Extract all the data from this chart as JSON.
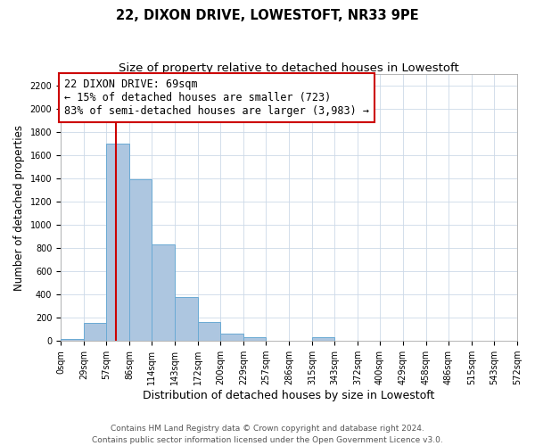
{
  "title": "22, DIXON DRIVE, LOWESTOFT, NR33 9PE",
  "subtitle": "Size of property relative to detached houses in Lowestoft",
  "xlabel": "Distribution of detached houses by size in Lowestoft",
  "ylabel": "Number of detached properties",
  "bar_edges": [
    0,
    29,
    57,
    86,
    114,
    143,
    172,
    200,
    229,
    257,
    286,
    315,
    343,
    372,
    400,
    429,
    458,
    486,
    515,
    543,
    572
  ],
  "bar_values": [
    20,
    155,
    1700,
    1390,
    830,
    380,
    165,
    65,
    30,
    0,
    0,
    30,
    0,
    0,
    0,
    0,
    0,
    0,
    0,
    0
  ],
  "bar_color": "#adc6e0",
  "bar_edge_color": "#6aaad4",
  "property_line_x": 69,
  "property_line_color": "#cc0000",
  "annotation_text": "22 DIXON DRIVE: 69sqm\n← 15% of detached houses are smaller (723)\n83% of semi-detached houses are larger (3,983) →",
  "annotation_box_color": "#ffffff",
  "annotation_box_edge_color": "#cc0000",
  "ylim": [
    0,
    2300
  ],
  "yticks": [
    0,
    200,
    400,
    600,
    800,
    1000,
    1200,
    1400,
    1600,
    1800,
    2000,
    2200
  ],
  "xtick_labels": [
    "0sqm",
    "29sqm",
    "57sqm",
    "86sqm",
    "114sqm",
    "143sqm",
    "172sqm",
    "200sqm",
    "229sqm",
    "257sqm",
    "286sqm",
    "315sqm",
    "343sqm",
    "372sqm",
    "400sqm",
    "429sqm",
    "458sqm",
    "486sqm",
    "515sqm",
    "543sqm",
    "572sqm"
  ],
  "footer_line1": "Contains HM Land Registry data © Crown copyright and database right 2024.",
  "footer_line2": "Contains public sector information licensed under the Open Government Licence v3.0.",
  "background_color": "#ffffff",
  "grid_color": "#ccd9e8",
  "title_fontsize": 10.5,
  "subtitle_fontsize": 9.5,
  "xlabel_fontsize": 9,
  "ylabel_fontsize": 8.5,
  "tick_fontsize": 7,
  "annotation_fontsize": 8.5,
  "footer_fontsize": 6.5
}
